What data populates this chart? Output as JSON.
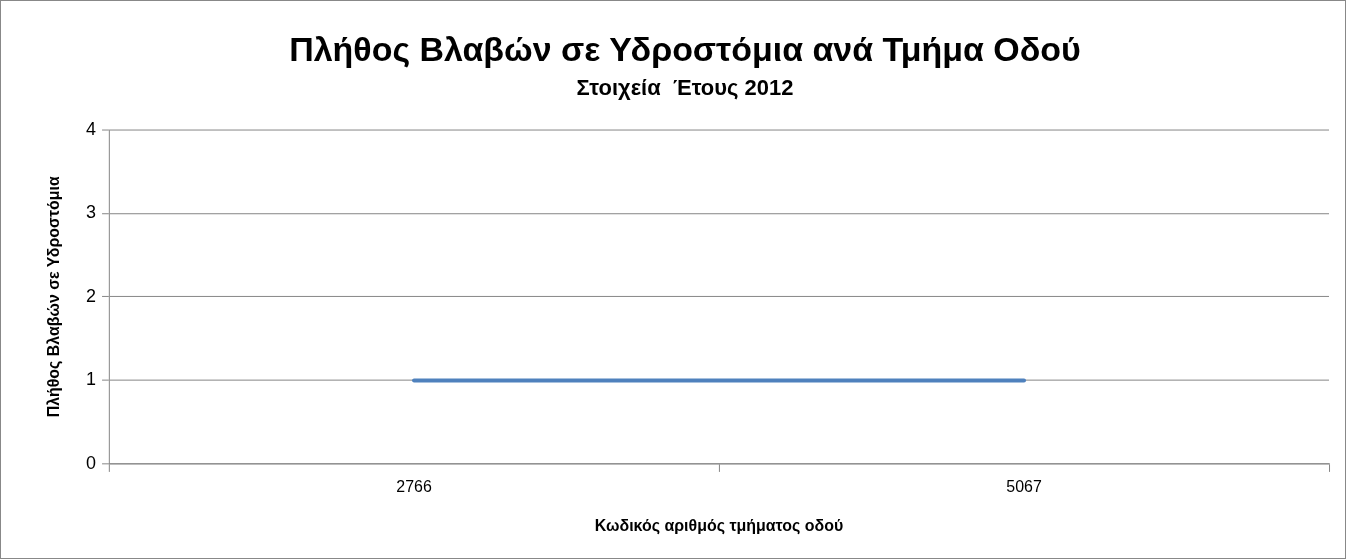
{
  "chart_data": {
    "type": "line",
    "title": "Πλήθος Βλαβών σε Υδροστόμια ανά Τμήμα Οδού",
    "subtitle": "Στοιχεία  Έτους 2012",
    "xlabel": "Κωδικός αριθμός τμήματος οδού",
    "ylabel": "Πλήθος Βλαβών σε Υδροστόμια",
    "categories": [
      "2766",
      "5067"
    ],
    "series": [
      {
        "color": "#4f81bd",
        "values": [
          1,
          1
        ]
      }
    ],
    "ylim": [
      0,
      4
    ],
    "yticks": [
      0,
      1,
      2,
      3,
      4
    ],
    "grid": "y",
    "legend": false,
    "marker": "none",
    "line_style": "solid"
  }
}
